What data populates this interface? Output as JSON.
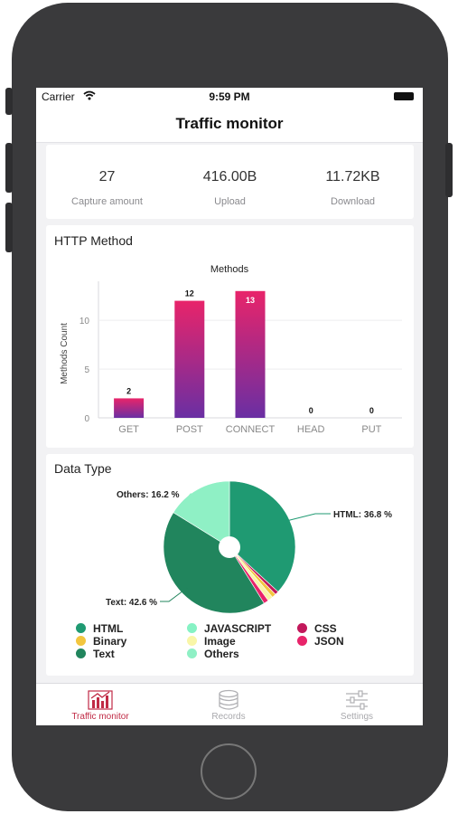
{
  "status": {
    "carrier": "Carrier",
    "time": "9:59 PM"
  },
  "nav": {
    "title": "Traffic monitor"
  },
  "stats": [
    {
      "value": "27",
      "label": "Capture amount"
    },
    {
      "value": "416.00B",
      "label": "Upload"
    },
    {
      "value": "11.72KB",
      "label": "Download"
    }
  ],
  "http_method": {
    "section_title": "HTTP Method",
    "chart_title": "Methods",
    "ylabel": "Methods Count",
    "yticks": [
      "0",
      "5",
      "10"
    ],
    "bar_labels": [
      "2",
      "12",
      "13",
      "0",
      "0"
    ]
  },
  "data_type": {
    "section_title": "Data Type",
    "callouts": [
      "HTML: 36.8 %",
      "Text: 42.6 %",
      "Others: 16.2 %"
    ],
    "legend": [
      {
        "label": "HTML",
        "color": "#1f9a72"
      },
      {
        "label": "JAVASCRIPT",
        "color": "#86f2c4"
      },
      {
        "label": "CSS",
        "color": "#c2185b"
      },
      {
        "label": "Binary",
        "color": "#f3c63f"
      },
      {
        "label": "Image",
        "color": "#f9f6a8"
      },
      {
        "label": "JSON",
        "color": "#e8246a"
      },
      {
        "label": "Text",
        "color": "#21855d"
      },
      {
        "label": "Others",
        "color": "#8ff0c5"
      }
    ]
  },
  "chart_data": [
    {
      "type": "bar",
      "title": "Methods",
      "ylabel": "Methods Count",
      "xlabel": "",
      "categories": [
        "GET",
        "POST",
        "CONNECT",
        "HEAD",
        "PUT"
      ],
      "values": [
        2,
        12,
        13,
        0,
        0
      ],
      "ylim": [
        0,
        14
      ],
      "grid": true
    },
    {
      "type": "pie",
      "categories": [
        "HTML",
        "JAVASCRIPT",
        "CSS",
        "Binary",
        "Image",
        "JSON",
        "Text",
        "Others"
      ],
      "values": [
        36.8,
        0,
        0.9,
        1.0,
        1.3,
        1.2,
        42.6,
        16.2
      ],
      "colors": [
        "#1f9a72",
        "#86f2c4",
        "#c2185b",
        "#f3c63f",
        "#f9f6a8",
        "#e8246a",
        "#21855d",
        "#8ff0c5"
      ],
      "legend_position": "bottom"
    }
  ],
  "tabs": [
    {
      "label": "Traffic monitor"
    },
    {
      "label": "Records"
    },
    {
      "label": "Settings"
    }
  ]
}
